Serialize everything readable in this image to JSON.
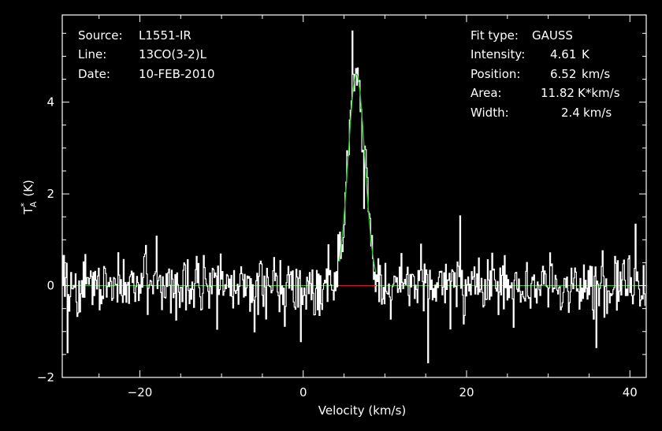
{
  "header_left": [
    {
      "label": "Source:",
      "value": "L1551-IR"
    },
    {
      "label": "Line:",
      "value": "13CO(3-2)L"
    },
    {
      "label": "Date:",
      "value": "10-FEB-2010"
    }
  ],
  "fit": {
    "fit_type_label": "Fit type:",
    "fit_type": "GAUSS",
    "rows": [
      {
        "label": "Intensity:",
        "value": "4.61",
        "unit": "K"
      },
      {
        "label": "Position:",
        "value": "6.52",
        "unit": "km/s"
      },
      {
        "label": "Area:",
        "value": "11.82",
        "unit": "K*km/s"
      },
      {
        "label": "Width:",
        "value": "2.4",
        "unit": "km/s"
      }
    ]
  },
  "colors": {
    "background": "#000000",
    "axes": "#ffffff",
    "spectrum": "#ffffff",
    "fit": "#2fbf2f",
    "baseline_fit_region": "#d02020"
  },
  "chart_data": {
    "type": "line",
    "xlabel": "Velocity (km/s)",
    "ylabel_main": "T",
    "ylabel_sup": "*",
    "ylabel_sub": "A",
    "ylabel_unit": "(K)",
    "xlim": [
      -29.5,
      42
    ],
    "ylim": [
      -2.0,
      5.9
    ],
    "x_ticks": [
      -20,
      0,
      20,
      40
    ],
    "x_tick_labels": [
      "−20",
      "0",
      "20",
      "40"
    ],
    "y_ticks": [
      -2,
      0,
      2,
      4
    ],
    "y_tick_labels": [
      "−2",
      "0",
      "2",
      "4"
    ],
    "grid": false,
    "series": [
      {
        "kind": "spectrum",
        "x_start": -29.5,
        "x_step": 0.109,
        "noise_rms": 0.32,
        "sample_values": [
          {
            "x": -28.9,
            "y": -1.46
          },
          {
            "x": -17.9,
            "y": 1.08
          },
          {
            "x": -10.5,
            "y": -0.95
          },
          {
            "x": -0.3,
            "y": -1.22
          },
          {
            "x": 6.0,
            "y": 5.55
          },
          {
            "x": 7.4,
            "y": 1.68
          },
          {
            "x": 15.3,
            "y": -1.68
          },
          {
            "x": 19.2,
            "y": 1.52
          },
          {
            "x": 35.9,
            "y": -1.35
          },
          {
            "x": 40.7,
            "y": 1.34
          }
        ]
      },
      {
        "kind": "gaussian_fit",
        "amplitude": 4.61,
        "center": 6.52,
        "fwhm": 2.4
      },
      {
        "kind": "fit_window",
        "x_range": [
          4.4,
          8.9
        ],
        "y": 0
      }
    ]
  }
}
